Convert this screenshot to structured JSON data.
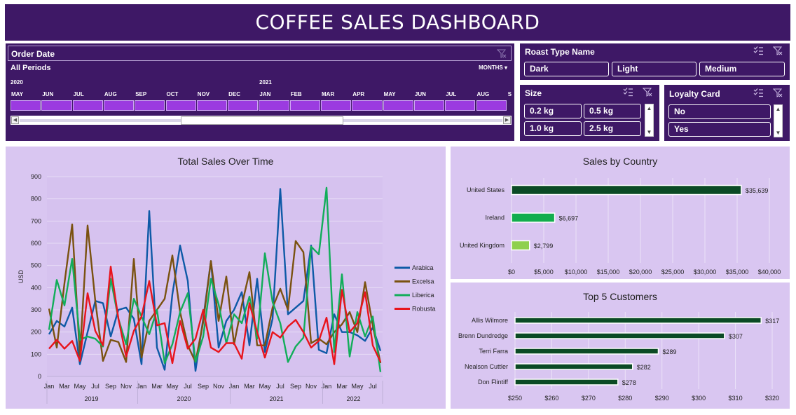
{
  "title": "COFFEE SALES DASHBOARD",
  "timeline": {
    "header": "Order Date",
    "all_periods": "All Periods",
    "granularity": "MONTHS",
    "year_2020": "2020",
    "year_2021": "2021",
    "months": [
      "MAY",
      "JUN",
      "JUL",
      "AUG",
      "SEP",
      "OCT",
      "NOV",
      "DEC",
      "JAN",
      "FEB",
      "MAR",
      "APR",
      "MAY",
      "JUN",
      "JUL",
      "AUG",
      "S"
    ]
  },
  "roast": {
    "header": "Roast Type Name",
    "items": [
      "Dark",
      "Light",
      "Medium"
    ]
  },
  "size": {
    "header": "Size",
    "items": [
      "0.2 kg",
      "0.5 kg",
      "1.0 kg",
      "2.5 kg"
    ]
  },
  "loyalty": {
    "header": "Loyalty Card",
    "items": [
      "No",
      "Yes"
    ]
  },
  "colors": {
    "panel": "#3e1866",
    "card_bg": "#d9c6f1",
    "arabica": "#0e5aa7",
    "excelsa": "#7a5210",
    "liberica": "#12ad5a",
    "robusta": "#e8141c",
    "us_bar": "#0b4a25",
    "ie_bar": "#12ad4d",
    "uk_bar": "#8fd04e"
  },
  "icons": {
    "multiselect": "multiselect-icon",
    "filter": "filter-clear-icon",
    "scroll_up": "up-arrow-icon",
    "scroll_down": "down-arrow-icon"
  },
  "chart_data": [
    {
      "type": "line",
      "title": "Total Sales Over Time",
      "ylabel": "USD",
      "ylim": [
        0,
        900
      ],
      "yticks": [
        "0",
        "100",
        "200",
        "300",
        "400",
        "500",
        "600",
        "700",
        "800",
        "900"
      ],
      "xtick_labels": [
        "Jan",
        "Mar",
        "May",
        "Jul",
        "Sep",
        "Nov",
        "Jan",
        "Mar",
        "May",
        "Jul",
        "Sep",
        "Nov",
        "Jan",
        "Mar",
        "May",
        "Jul",
        "Sep",
        "Nov",
        "Jan",
        "Mar",
        "May",
        "Jul"
      ],
      "years": [
        "2019",
        "2020",
        "2021",
        "2022"
      ],
      "x": [
        "2019-01",
        "2019-02",
        "2019-03",
        "2019-04",
        "2019-05",
        "2019-06",
        "2019-07",
        "2019-08",
        "2019-09",
        "2019-10",
        "2019-11",
        "2019-12",
        "2020-01",
        "2020-02",
        "2020-03",
        "2020-04",
        "2020-05",
        "2020-06",
        "2020-07",
        "2020-08",
        "2020-09",
        "2020-10",
        "2020-11",
        "2020-12",
        "2021-01",
        "2021-02",
        "2021-03",
        "2021-04",
        "2021-05",
        "2021-06",
        "2021-07",
        "2021-08",
        "2021-09",
        "2021-10",
        "2021-11",
        "2021-12",
        "2022-01",
        "2022-02",
        "2022-03",
        "2022-04",
        "2022-05",
        "2022-06",
        "2022-07",
        "2022-08"
      ],
      "series": [
        {
          "name": "Arabica",
          "color": "#0e5aa7",
          "values": [
            190,
            250,
            225,
            310,
            55,
            200,
            340,
            330,
            180,
            300,
            310,
            260,
            55,
            745,
            130,
            30,
            370,
            590,
            430,
            25,
            260,
            520,
            130,
            250,
            300,
            380,
            140,
            440,
            110,
            260,
            845,
            280,
            310,
            340,
            590,
            120,
            105,
            280,
            200,
            200,
            185,
            160,
            220,
            115
          ]
        },
        {
          "name": "Excelsa",
          "color": "#7a5210",
          "values": [
            305,
            130,
            420,
            685,
            95,
            680,
            340,
            70,
            165,
            155,
            65,
            530,
            85,
            250,
            300,
            350,
            545,
            290,
            140,
            65,
            245,
            520,
            250,
            450,
            145,
            320,
            470,
            140,
            140,
            310,
            395,
            300,
            610,
            560,
            150,
            170,
            145,
            200,
            235,
            290,
            200,
            425,
            230,
            60
          ]
        },
        {
          "name": "Liberica",
          "color": "#12ad5a",
          "values": [
            210,
            435,
            320,
            530,
            165,
            180,
            170,
            135,
            440,
            260,
            145,
            350,
            270,
            190,
            300,
            60,
            145,
            290,
            375,
            65,
            180,
            440,
            325,
            150,
            280,
            240,
            360,
            170,
            555,
            335,
            240,
            65,
            135,
            175,
            585,
            550,
            850,
            110,
            460,
            90,
            290,
            180,
            270,
            20
          ]
        },
        {
          "name": "Robusta",
          "color": "#e8141c",
          "values": [
            125,
            165,
            125,
            160,
            70,
            375,
            205,
            140,
            495,
            260,
            90,
            205,
            270,
            430,
            230,
            240,
            60,
            250,
            125,
            170,
            300,
            130,
            110,
            150,
            150,
            80,
            330,
            200,
            85,
            200,
            175,
            225,
            255,
            200,
            130,
            160,
            265,
            55,
            390,
            200,
            240,
            380,
            140,
            65
          ]
        }
      ]
    },
    {
      "type": "bar",
      "title": "Sales by Country",
      "categories": [
        "United States",
        "Ireland",
        "United Kingdom"
      ],
      "values": [
        35639,
        6697,
        2799
      ],
      "labels": [
        "$35,639",
        "$6,697",
        "$2,799"
      ],
      "xlim": [
        0,
        40000
      ],
      "xticks": [
        "$0",
        "$5,000",
        "$10,000",
        "$15,000",
        "$20,000",
        "$25,000",
        "$30,000",
        "$35,000",
        "$40,000"
      ]
    },
    {
      "type": "bar",
      "title": "Top 5 Customers",
      "categories": [
        "Allis Wilmore",
        "Brenn Dundredge",
        "Terri Farra",
        "Nealson Cuttler",
        "Don Flintiff"
      ],
      "values": [
        317,
        307,
        289,
        282,
        278
      ],
      "labels": [
        "$317",
        "$307",
        "$289",
        "$282",
        "$278"
      ],
      "xlim": [
        250,
        320
      ],
      "xticks": [
        "$250",
        "$260",
        "$270",
        "$280",
        "$290",
        "$300",
        "$310",
        "$320"
      ]
    }
  ]
}
